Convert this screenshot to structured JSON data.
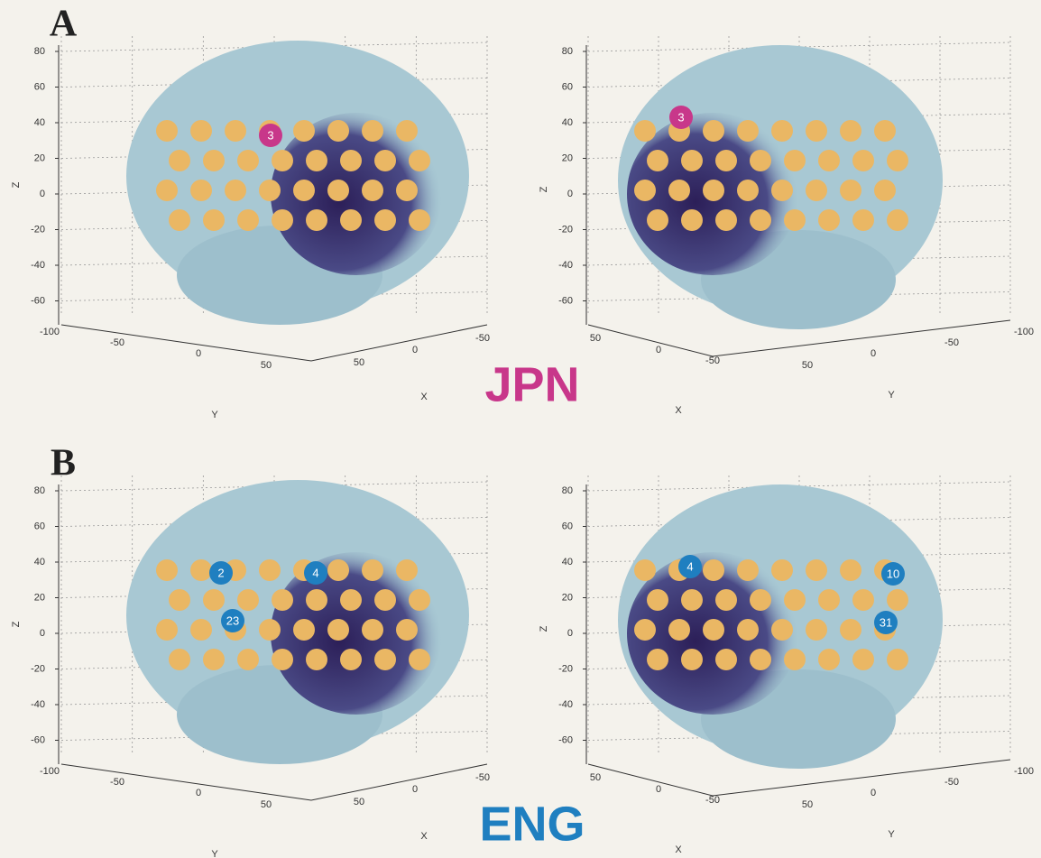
{
  "panels": [
    {
      "letter": "A",
      "language": "JPN",
      "color": "#c8378a",
      "views": [
        {
          "z_ticks": [
            "80",
            "60",
            "40",
            "20",
            "0",
            "-20",
            "-40",
            "-60"
          ],
          "y_ticks": [
            "-100",
            "-50",
            "0",
            "50"
          ],
          "x_ticks": [
            "50",
            "0",
            "-50"
          ],
          "z_label": "Z",
          "y_label": "Y",
          "x_label": "X",
          "electrode_labels": [
            "3"
          ]
        },
        {
          "z_ticks": [
            "80",
            "60",
            "40",
            "20",
            "0",
            "-20",
            "-40",
            "-60"
          ],
          "x_ticks": [
            "50",
            "0",
            "-50"
          ],
          "y_ticks": [
            "50",
            "0",
            "-50",
            "-100"
          ],
          "z_label": "Z",
          "y_label": "Y",
          "x_label": "X",
          "electrode_labels": [
            "3"
          ]
        }
      ]
    },
    {
      "letter": "B",
      "language": "ENG",
      "color": "#1f7fc0",
      "views": [
        {
          "z_ticks": [
            "80",
            "60",
            "40",
            "20",
            "0",
            "-20",
            "-40",
            "-60"
          ],
          "y_ticks": [
            "-100",
            "-50",
            "0",
            "50"
          ],
          "x_ticks": [
            "50",
            "0",
            "-50"
          ],
          "z_label": "Z",
          "y_label": "Y",
          "x_label": "X",
          "electrode_labels": [
            "2",
            "4",
            "23"
          ]
        },
        {
          "z_ticks": [
            "80",
            "60",
            "40",
            "20",
            "0",
            "-20",
            "-40",
            "-60"
          ],
          "x_ticks": [
            "50",
            "0",
            "-50"
          ],
          "y_ticks": [
            "50",
            "0",
            "-50",
            "-100"
          ],
          "z_label": "Z",
          "y_label": "Y",
          "x_label": "X",
          "electrode_labels": [
            "4",
            "10",
            "31"
          ]
        }
      ]
    }
  ]
}
